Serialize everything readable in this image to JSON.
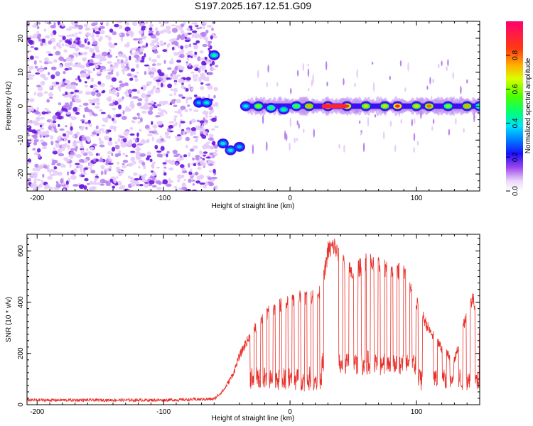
{
  "title": "S197.2025.167.12.51.G09",
  "colors": {
    "snr_line": "#e8302a",
    "speckle_light": "#e6ccfa",
    "speckle_mid": "#b784f0",
    "speckle_dark": "#6a16e0"
  },
  "chart_data": [
    {
      "type": "heatmap",
      "name": "spectrogram",
      "xlabel": "Height of straight line (km)",
      "ylabel": "Frequency (Hz)",
      "xlim": [
        -208,
        150
      ],
      "ylim": [
        -25,
        25
      ],
      "xticks": [
        -200,
        -100,
        0,
        100
      ],
      "xtick_labels": [
        "-200",
        "-100",
        "0",
        "100"
      ],
      "yticks": [
        -20,
        -10,
        0,
        10,
        20
      ],
      "ytick_labels": [
        "-20",
        "-10",
        "0",
        "10",
        "20"
      ],
      "noise_region_km": [
        -208,
        -58
      ],
      "signal_band": [
        {
          "x": -72,
          "freq": 1,
          "amp": 0.35
        },
        {
          "x": -66,
          "freq": 1,
          "amp": 0.4
        },
        {
          "x": -60,
          "freq": 15,
          "amp": 0.45
        },
        {
          "x": -53,
          "freq": -11,
          "amp": 0.4
        },
        {
          "x": -47,
          "freq": -13,
          "amp": 0.4
        },
        {
          "x": -40,
          "freq": -12,
          "amp": 0.35
        },
        {
          "x": -35,
          "freq": 0,
          "amp": 0.4
        },
        {
          "x": -25,
          "freq": 0,
          "amp": 0.6
        },
        {
          "x": -15,
          "freq": -0.5,
          "amp": 0.5
        },
        {
          "x": -5,
          "freq": -1,
          "amp": 0.45
        },
        {
          "x": 5,
          "freq": 0,
          "amp": 0.55
        },
        {
          "x": 15,
          "freq": 0,
          "amp": 0.75
        },
        {
          "x": 30,
          "freq": 0,
          "amp": 0.95
        },
        {
          "x": 45,
          "freq": 0,
          "amp": 0.85
        },
        {
          "x": 60,
          "freq": 0,
          "amp": 0.7
        },
        {
          "x": 75,
          "freq": 0,
          "amp": 0.7
        },
        {
          "x": 85,
          "freq": 0,
          "amp": 0.9
        },
        {
          "x": 100,
          "freq": 0,
          "amp": 0.7
        },
        {
          "x": 110,
          "freq": 0,
          "amp": 0.8
        },
        {
          "x": 125,
          "freq": 0,
          "amp": 0.6
        },
        {
          "x": 140,
          "freq": 0,
          "amp": 0.75
        },
        {
          "x": 150,
          "freq": 0,
          "amp": 0.5
        }
      ],
      "colorbar": {
        "label": "Normalized spectral amplitude",
        "range": [
          0,
          1
        ],
        "ticks": [
          0.0,
          0.2,
          0.4,
          0.6,
          0.8
        ],
        "tick_labels": [
          "0.0",
          "0.2",
          "0.4",
          "0.6",
          "0.8"
        ]
      }
    },
    {
      "type": "line",
      "name": "snr",
      "xlabel": "Height of straight line (km)",
      "ylabel": "SNR (10 * v/v)",
      "xlim": [
        -208,
        150
      ],
      "ylim": [
        0,
        665
      ],
      "xticks": [
        -200,
        -100,
        0,
        100
      ],
      "xtick_labels": [
        "-200",
        "-100",
        "0",
        "100"
      ],
      "yticks": [
        0,
        200,
        400,
        600
      ],
      "ytick_labels": [
        "0",
        "200",
        "400",
        "600"
      ],
      "envelope": [
        {
          "x": -208,
          "y": 18
        },
        {
          "x": -100,
          "y": 18
        },
        {
          "x": -60,
          "y": 22
        },
        {
          "x": -52,
          "y": 60
        },
        {
          "x": -45,
          "y": 120
        },
        {
          "x": -40,
          "y": 190
        },
        {
          "x": -35,
          "y": 240
        },
        {
          "x": -30,
          "y": 280
        },
        {
          "x": -20,
          "y": 350
        },
        {
          "x": -10,
          "y": 380
        },
        {
          "x": 0,
          "y": 410
        },
        {
          "x": 10,
          "y": 420
        },
        {
          "x": 20,
          "y": 420
        },
        {
          "x": 25,
          "y": 440
        },
        {
          "x": 30,
          "y": 600
        },
        {
          "x": 35,
          "y": 620
        },
        {
          "x": 40,
          "y": 560
        },
        {
          "x": 50,
          "y": 510
        },
        {
          "x": 60,
          "y": 560
        },
        {
          "x": 70,
          "y": 540
        },
        {
          "x": 80,
          "y": 530
        },
        {
          "x": 90,
          "y": 520
        },
        {
          "x": 100,
          "y": 400
        },
        {
          "x": 110,
          "y": 290
        },
        {
          "x": 120,
          "y": 220
        },
        {
          "x": 130,
          "y": 170
        },
        {
          "x": 140,
          "y": 360
        },
        {
          "x": 145,
          "y": 420
        },
        {
          "x": 150,
          "y": 300
        }
      ],
      "dropouts_km": [
        -30,
        -25,
        -20,
        -15,
        -10,
        -5,
        0,
        5,
        10,
        15,
        20,
        25,
        40,
        45,
        52,
        58,
        62,
        68,
        73,
        78,
        83,
        88,
        93,
        98,
        103,
        115,
        122,
        128,
        135,
        141,
        148
      ]
    }
  ]
}
